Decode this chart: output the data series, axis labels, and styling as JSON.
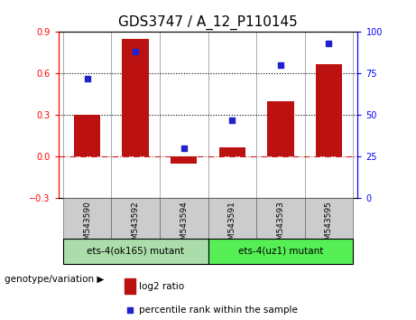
{
  "title": "GDS3747 / A_12_P110145",
  "categories": [
    "GSM543590",
    "GSM543592",
    "GSM543594",
    "GSM543591",
    "GSM543593",
    "GSM543595"
  ],
  "log2_ratio": [
    0.3,
    0.85,
    -0.05,
    0.07,
    0.4,
    0.67
  ],
  "percentile_rank": [
    72,
    88,
    30,
    47,
    80,
    93
  ],
  "ylim_left": [
    -0.3,
    0.9
  ],
  "ylim_right": [
    0,
    100
  ],
  "yticks_left": [
    -0.3,
    0.0,
    0.3,
    0.6,
    0.9
  ],
  "yticks_right": [
    0,
    25,
    50,
    75,
    100
  ],
  "hlines": [
    0.3,
    0.6
  ],
  "bar_color": "#bb1111",
  "dot_color": "#2222cc",
  "zero_line_color": "#cc2222",
  "hline_color": "black",
  "group1_label": "ets-4(ok165) mutant",
  "group2_label": "ets-4(uz1) mutant",
  "group1_indices": [
    0,
    1,
    2
  ],
  "group2_indices": [
    3,
    4,
    5
  ],
  "group1_color": "#aaddaa",
  "group2_color": "#55ee55",
  "genotype_label": "genotype/variation",
  "legend_bar_label": "log2 ratio",
  "legend_dot_label": "percentile rank within the sample",
  "bar_width": 0.55,
  "tick_label_fontsize": 7,
  "title_fontsize": 11,
  "sample_box_color": "#cccccc",
  "plot_bg_color": "#ffffff",
  "fig_bg_color": "#ffffff"
}
